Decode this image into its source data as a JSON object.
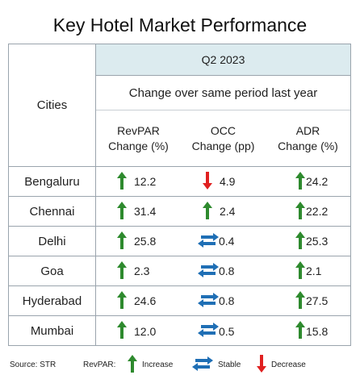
{
  "title": "Key Hotel Market Performance",
  "header": {
    "cities": "Cities",
    "period": "Q2 2023",
    "change": "Change over same period last year",
    "columns": [
      {
        "line1": "RevPAR",
        "line2": "Change (%)"
      },
      {
        "line1": "OCC",
        "line2": "Change (pp)"
      },
      {
        "line1": "ADR",
        "line2": "Change (%)"
      }
    ]
  },
  "rows": [
    {
      "city": "Bengaluru",
      "revpar": "12.2",
      "revpar_icon": "increase",
      "occ": "4.9",
      "occ_icon": "decrease",
      "adr": "24.2",
      "adr_icon": "increase"
    },
    {
      "city": "Chennai",
      "revpar": "31.4",
      "revpar_icon": "increase",
      "occ": "2.4",
      "occ_icon": "increase",
      "adr": "22.2",
      "adr_icon": "increase"
    },
    {
      "city": "Delhi",
      "revpar": "25.8",
      "revpar_icon": "increase",
      "occ": "0.4",
      "occ_icon": "stable",
      "adr": "25.3",
      "adr_icon": "increase"
    },
    {
      "city": "Goa",
      "revpar": "2.3",
      "revpar_icon": "increase",
      "occ": "0.8",
      "occ_icon": "stable",
      "adr": "2.1",
      "adr_icon": "increase"
    },
    {
      "city": "Hyderabad",
      "revpar": "24.6",
      "revpar_icon": "increase",
      "occ": "0.8",
      "occ_icon": "stable",
      "adr": "27.5",
      "adr_icon": "increase"
    },
    {
      "city": "Mumbai",
      "revpar": "12.0",
      "revpar_icon": "increase",
      "occ": "0.5",
      "occ_icon": "stable",
      "adr": "15.8",
      "adr_icon": "increase"
    }
  ],
  "legend": {
    "source": "Source: STR",
    "revpar": "RevPAR:",
    "increase": "Increase",
    "stable": "Stable",
    "decrease": "Decrease"
  },
  "colors": {
    "increase": "#2e8a2e",
    "stable": "#1f6fb5",
    "decrease": "#e02020",
    "header_bg": "#dcebef"
  }
}
